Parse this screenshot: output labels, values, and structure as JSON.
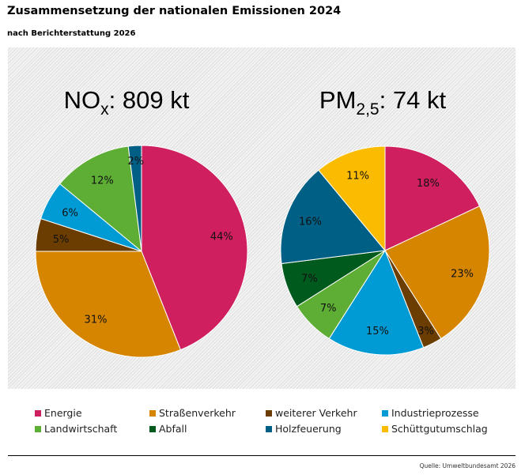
{
  "title": "Zusammensetzung der nationalen Emissionen 2024",
  "subtitle": "nach Berichterstattung 2026",
  "source": "Quelle: Umweltbundesamt 2026",
  "chart_data": [
    {
      "type": "pie",
      "title_main": "NO",
      "title_sub": "x",
      "title_rest": ": 809 kt",
      "categories": [
        "Energie",
        "Straßenverkehr",
        "weiterer Verkehr",
        "Industrieprozesse",
        "Landwirtschaft",
        "Abfall",
        "Holzfeuerung"
      ],
      "values": [
        44,
        31,
        5,
        6,
        12,
        0,
        2
      ],
      "labels": [
        "44%",
        "31%",
        "5%",
        "6%",
        "12%",
        "",
        "2%"
      ],
      "colors": [
        "#cf1f5e",
        "#d68500",
        "#6b3d00",
        "#009bd5",
        "#5eae35",
        "#005a1e",
        "#005f85"
      ]
    },
    {
      "type": "pie",
      "title_main": "PM",
      "title_sub": "2,5",
      "title_rest": ": 74 kt",
      "categories": [
        "Energie",
        "Straßenverkehr",
        "weiterer Verkehr",
        "Industrieprozesse",
        "Landwirtschaft",
        "Abfall",
        "Holzfeuerung",
        "Schüttgutumschlag"
      ],
      "values": [
        18,
        23,
        3,
        15,
        7,
        7,
        16,
        11
      ],
      "labels": [
        "18%",
        "23%",
        "3%",
        "15%",
        "7%",
        "7%",
        "16%",
        "11%"
      ],
      "colors": [
        "#cf1f5e",
        "#d68500",
        "#6b3d00",
        "#009bd5",
        "#5eae35",
        "#005a1e",
        "#005f85",
        "#fabb00"
      ]
    }
  ],
  "legend": [
    {
      "label": "Energie",
      "color": "#cf1f5e"
    },
    {
      "label": "Straßenverkehr",
      "color": "#d68500"
    },
    {
      "label": "weiterer Verkehr",
      "color": "#6b3d00"
    },
    {
      "label": "Industrieprozesse",
      "color": "#009bd5"
    },
    {
      "label": "Landwirtschaft",
      "color": "#5eae35"
    },
    {
      "label": "Abfall",
      "color": "#005a1e"
    },
    {
      "label": "Holzfeuerung",
      "color": "#005f85"
    },
    {
      "label": "Schüttgutumschlag",
      "color": "#fabb00"
    }
  ]
}
